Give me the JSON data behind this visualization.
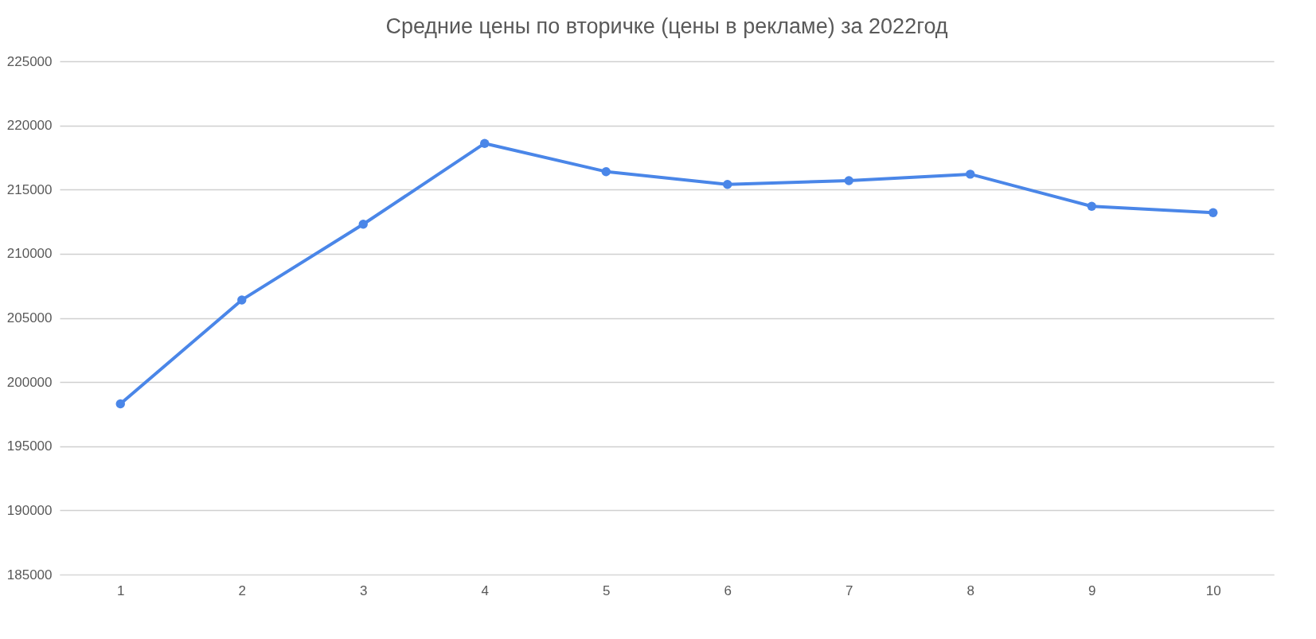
{
  "chart_data": {
    "type": "line",
    "title": "Средние цены по вторичке (цены в рекламе) за 2022год",
    "categories": [
      "1",
      "2",
      "3",
      "4",
      "5",
      "6",
      "7",
      "8",
      "9",
      "10"
    ],
    "series": [
      {
        "color": "#4a86e8",
        "values": [
          198300,
          206400,
          212300,
          218600,
          216400,
          215400,
          215700,
          216200,
          213700,
          213200
        ]
      }
    ],
    "ylim": [
      185000,
      225000
    ],
    "yticks": [
      185000,
      190000,
      195000,
      200000,
      205000,
      210000,
      215000,
      220000,
      225000
    ],
    "grid": "y",
    "marker": "circle",
    "line_style": "solid"
  }
}
